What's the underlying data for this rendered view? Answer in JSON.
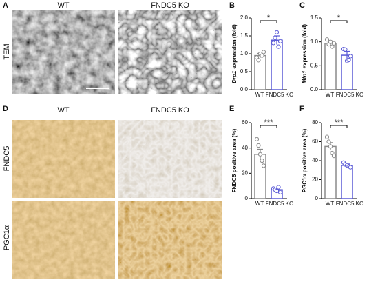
{
  "image_panels": [
    {
      "letter": "A",
      "columns": [
        "WT",
        "FNDC5 KO"
      ],
      "row_labels": [
        "TEM"
      ]
    },
    {
      "letter": "D",
      "columns": [
        "WT",
        "FNDC5 KO"
      ],
      "row_labels": [
        "FNDC5",
        "PGC1α"
      ]
    }
  ],
  "chart_data": [
    {
      "type": "bar",
      "panel": "B",
      "ylabel_gene": "Drp1",
      "ylabel": "expression (fold)",
      "categories": [
        "WT",
        "FNDC5 KO"
      ],
      "values": [
        0.95,
        1.38
      ],
      "errors": [
        0.06,
        0.12
      ],
      "points": [
        [
          0.9,
          0.82,
          1.0,
          0.95,
          1.05
        ],
        [
          1.3,
          1.45,
          1.6,
          1.2,
          1.35
        ]
      ],
      "colors": [
        "#8a8a8a",
        "#5b5bd6"
      ],
      "significance": "*",
      "ylim": [
        0,
        2
      ],
      "yticks": [
        {
          "value": 0,
          "label": "0.0"
        },
        0.5,
        {
          "value": 1,
          "label": "1.0"
        },
        1.5,
        {
          "value": 2,
          "label": "2.0"
        }
      ]
    },
    {
      "type": "bar",
      "panel": "C",
      "ylabel_gene": "Mfn1",
      "ylabel": "expression (fold)",
      "categories": [
        "WT",
        "FNDC5 KO"
      ],
      "values": [
        0.97,
        0.72
      ],
      "errors": [
        0.05,
        0.08
      ],
      "points": [
        [
          1.05,
          0.95,
          1.0,
          0.9,
          0.97
        ],
        [
          0.85,
          0.84,
          0.6,
          0.62,
          0.7
        ]
      ],
      "colors": [
        "#8a8a8a",
        "#5b5bd6"
      ],
      "significance": "*",
      "ylim": [
        0,
        1.5
      ],
      "yticks": [
        {
          "value": 0,
          "label": "0.0"
        },
        0.5,
        {
          "value": 1,
          "label": "1.0"
        },
        1.5
      ]
    },
    {
      "type": "bar",
      "panel": "E",
      "ylabel": "FNDC5 positive area (%)",
      "categories": [
        "WT",
        "FNDC5 KO"
      ],
      "values": [
        35,
        7
      ],
      "errors": [
        4,
        1
      ],
      "points": [
        [
          47,
          42,
          35,
          30,
          26
        ],
        [
          8,
          7,
          6,
          9,
          5
        ]
      ],
      "colors": [
        "#8a8a8a",
        "#5b5bd6"
      ],
      "significance": "***",
      "ylim": [
        0,
        60
      ],
      "yticks": [
        0,
        20,
        40,
        60
      ]
    },
    {
      "type": "bar",
      "panel": "F",
      "ylabel": "PGC1α positive area (%)",
      "categories": [
        "WT",
        "FNDC5 KO"
      ],
      "values": [
        55,
        35
      ],
      "errors": [
        4,
        1.5
      ],
      "points": [
        [
          65,
          60,
          55,
          48,
          45
        ],
        [
          38,
          36,
          35,
          34,
          33
        ]
      ],
      "colors": [
        "#8a8a8a",
        "#5b5bd6"
      ],
      "significance": "***",
      "ylim": [
        0,
        80
      ],
      "yticks": [
        0,
        20,
        40,
        60,
        80
      ]
    }
  ]
}
